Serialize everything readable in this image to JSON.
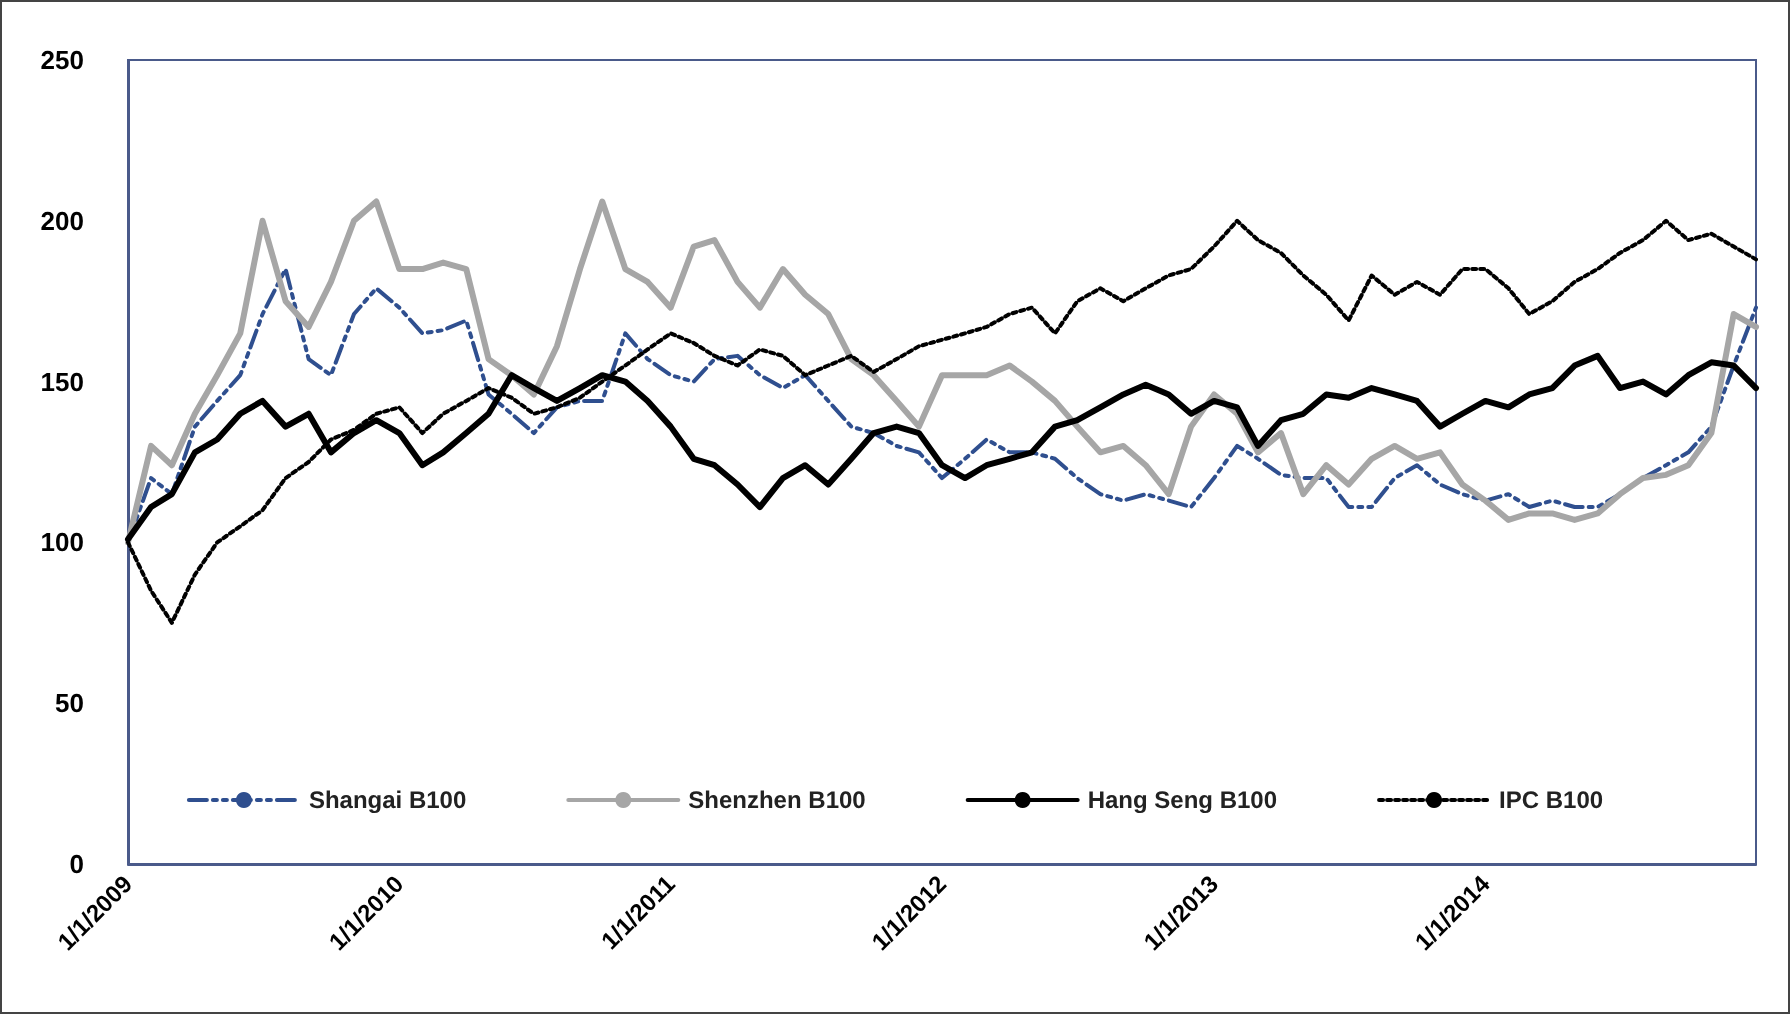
{
  "chart_data": {
    "type": "line",
    "x": [
      "2009-01-01",
      "2009-02-01",
      "2009-03-01",
      "2009-04-01",
      "2009-05-01",
      "2009-06-01",
      "2009-07-01",
      "2009-08-01",
      "2009-09-01",
      "2009-10-01",
      "2009-11-01",
      "2009-12-01",
      "2010-01-01",
      "2010-02-01",
      "2010-03-01",
      "2010-04-01",
      "2010-05-01",
      "2010-06-01",
      "2010-07-01",
      "2010-08-01",
      "2010-09-01",
      "2010-10-01",
      "2010-11-01",
      "2010-12-01",
      "2011-01-01",
      "2011-02-01",
      "2011-03-01",
      "2011-04-01",
      "2011-05-01",
      "2011-06-01",
      "2011-07-01",
      "2011-08-01",
      "2011-09-01",
      "2011-10-01",
      "2011-11-01",
      "2011-12-01",
      "2012-01-01",
      "2012-02-01",
      "2012-03-01",
      "2012-04-01",
      "2012-05-01",
      "2012-06-01",
      "2012-07-01",
      "2012-08-01",
      "2012-09-01",
      "2012-10-01",
      "2012-11-01",
      "2012-12-01",
      "2013-01-01",
      "2013-02-01",
      "2013-03-01",
      "2013-04-01",
      "2013-05-01",
      "2013-06-01",
      "2013-07-01",
      "2013-08-01",
      "2013-09-01",
      "2013-10-01",
      "2013-11-01",
      "2013-12-01",
      "2014-01-01",
      "2014-02-01",
      "2014-03-01",
      "2014-04-01",
      "2014-05-01",
      "2014-06-01",
      "2014-07-01",
      "2014-08-01",
      "2014-09-01",
      "2014-10-01",
      "2014-11-01",
      "2014-12-01",
      "2014-12-31"
    ],
    "xlim": [
      "2009-01-01",
      "2014-12-31"
    ],
    "xticks": [
      {
        "value": "2009-01-01",
        "label": "1/1/2009"
      },
      {
        "value": "2010-01-01",
        "label": "1/1/2010"
      },
      {
        "value": "2011-01-01",
        "label": "1/1/2011"
      },
      {
        "value": "2012-01-01",
        "label": "1/1/2012"
      },
      {
        "value": "2013-01-01",
        "label": "1/1/2013"
      },
      {
        "value": "2014-01-01",
        "label": "1/1/2014"
      }
    ],
    "ylim": [
      0,
      250
    ],
    "yticks": [
      0,
      50,
      100,
      150,
      200,
      250
    ],
    "legend": "bottom",
    "marker": "none",
    "series": [
      {
        "name": "Shangai B100",
        "color": "#2f4f8f",
        "line_style": "dashed",
        "values": [
          100,
          120,
          115,
          136,
          144,
          152,
          171,
          185,
          157,
          152,
          171,
          179,
          173,
          165,
          166,
          169,
          146,
          140,
          134,
          142,
          144,
          144,
          165,
          157,
          152,
          150,
          157,
          158,
          152,
          148,
          152,
          144,
          136,
          134,
          130,
          128,
          120,
          126,
          132,
          128,
          128,
          126,
          120,
          115,
          113,
          115,
          113,
          111,
          120,
          130,
          126,
          121,
          120,
          120,
          111,
          111,
          120,
          124,
          118,
          115,
          113,
          115,
          111,
          113,
          111,
          111,
          115,
          120,
          124,
          128,
          136,
          155,
          173
        ]
      },
      {
        "name": "Shenzhen B100",
        "color": "#a6a6a6",
        "line_style": "solid",
        "values": [
          100,
          130,
          124,
          140,
          152,
          165,
          200,
          175,
          167,
          181,
          200,
          206,
          185,
          185,
          187,
          185,
          157,
          152,
          146,
          161,
          185,
          206,
          185,
          181,
          173,
          192,
          194,
          181,
          173,
          185,
          177,
          171,
          157,
          152,
          144,
          136,
          152,
          152,
          152,
          155,
          150,
          144,
          136,
          128,
          130,
          124,
          115,
          136,
          146,
          140,
          128,
          134,
          115,
          124,
          118,
          126,
          130,
          126,
          128,
          118,
          113,
          107,
          109,
          109,
          107,
          109,
          115,
          120,
          121,
          124,
          134,
          171,
          167
        ]
      },
      {
        "name": "Hang Seng B100",
        "color": "#000000",
        "line_style": "solid",
        "values": [
          101,
          111,
          115,
          128,
          132,
          140,
          144,
          136,
          140,
          128,
          134,
          138,
          134,
          124,
          128,
          134,
          140,
          152,
          148,
          144,
          148,
          152,
          150,
          144,
          136,
          126,
          124,
          118,
          111,
          120,
          124,
          118,
          126,
          134,
          136,
          134,
          124,
          120,
          124,
          126,
          128,
          136,
          138,
          142,
          146,
          149,
          146,
          140,
          144,
          142,
          130,
          138,
          140,
          146,
          145,
          148,
          146,
          144,
          136,
          140,
          144,
          142,
          146,
          148,
          155,
          158,
          148,
          150,
          146,
          152,
          156,
          155,
          148
        ]
      },
      {
        "name": "IPC B100",
        "color": "#000000",
        "line_style": "dotted",
        "values": [
          100,
          85,
          75,
          90,
          100,
          105,
          110,
          120,
          125,
          132,
          135,
          140,
          142,
          134,
          140,
          144,
          148,
          145,
          140,
          142,
          145,
          150,
          155,
          160,
          165,
          162,
          158,
          155,
          160,
          158,
          152,
          155,
          158,
          153,
          157,
          161,
          163,
          165,
          167,
          171,
          173,
          165,
          175,
          179,
          175,
          179,
          183,
          185,
          192,
          200,
          194,
          190,
          183,
          177,
          169,
          183,
          177,
          181,
          177,
          185,
          185,
          179,
          171,
          175,
          181,
          185,
          190,
          194,
          200,
          194,
          196,
          192,
          188
        ]
      }
    ]
  }
}
